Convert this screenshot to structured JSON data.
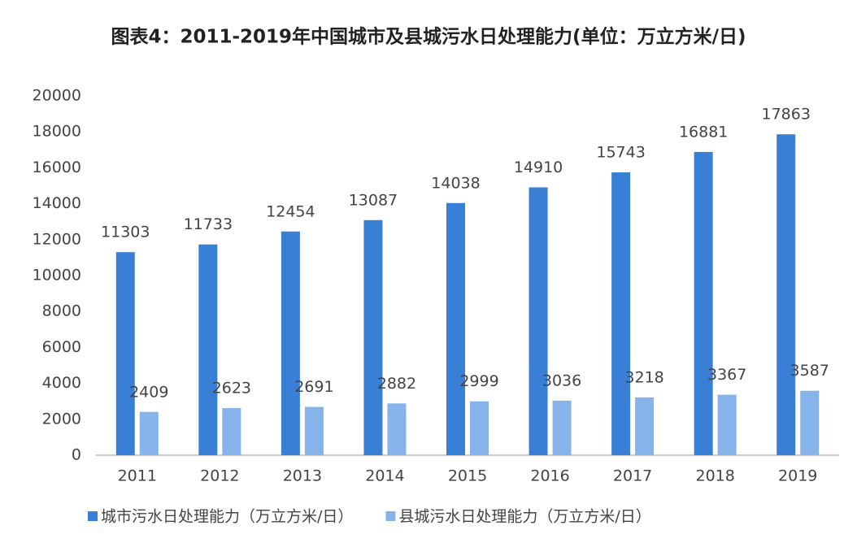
{
  "chart_data": {
    "type": "bar",
    "title": "图表4：2011-2019年中国城市及县城污水日处理能力(单位：万立方米/日)",
    "categories": [
      "2011",
      "2012",
      "2013",
      "2014",
      "2015",
      "2016",
      "2017",
      "2018",
      "2019"
    ],
    "series": [
      {
        "name": "城市污水日处理能力（万立方米/日）",
        "color": "#3a7fd6",
        "values": [
          11303,
          11733,
          12454,
          13087,
          14038,
          14910,
          15743,
          16881,
          17863
        ]
      },
      {
        "name": "县城污水日处理能力（万立方米/日）",
        "color": "#86b4ea",
        "values": [
          2409,
          2623,
          2691,
          2882,
          2999,
          3036,
          3218,
          3367,
          3587
        ]
      }
    ],
    "ylim": [
      0,
      20000
    ],
    "yticks": [
      0,
      2000,
      4000,
      6000,
      8000,
      10000,
      12000,
      14000,
      16000,
      18000,
      20000
    ],
    "grid": false,
    "legend": "bottom"
  }
}
